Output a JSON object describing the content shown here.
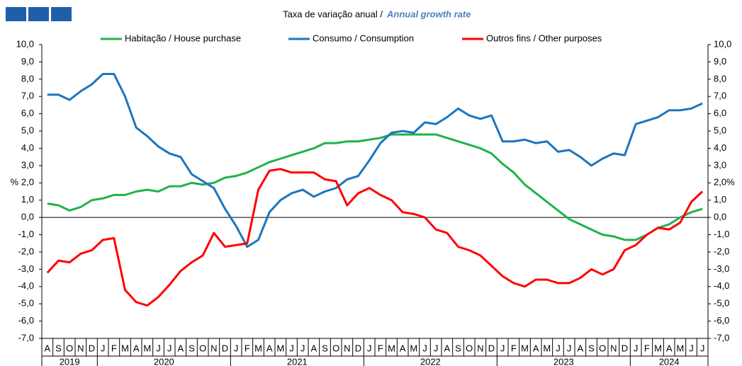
{
  "chart_data": {
    "type": "line",
    "title": "Taxa de variação anual /",
    "title_en": "Annual growth rate",
    "y_label": "%",
    "categories": [
      "A",
      "S",
      "O",
      "N",
      "D",
      "J",
      "F",
      "M",
      "A",
      "M",
      "J",
      "J",
      "A",
      "S",
      "O",
      "N",
      "D",
      "J",
      "F",
      "M",
      "A",
      "M",
      "J",
      "J",
      "A",
      "S",
      "O",
      "N",
      "D",
      "J",
      "F",
      "M",
      "A",
      "M",
      "J",
      "J",
      "A",
      "S",
      "O",
      "N",
      "D",
      "J",
      "F",
      "M",
      "A",
      "M",
      "J",
      "J",
      "A",
      "S",
      "O",
      "N",
      "D",
      "J",
      "F",
      "M",
      "A",
      "M",
      "J",
      "J"
    ],
    "years": [
      "2019",
      "2020",
      "2021",
      "2022",
      "2023",
      "2024"
    ],
    "series": [
      {
        "name": "Habitação / House purchase",
        "color": "#1fb34a",
        "values": [
          0.8,
          0.7,
          0.4,
          0.6,
          1.0,
          1.1,
          1.3,
          1.3,
          1.5,
          1.6,
          1.5,
          1.8,
          1.8,
          2.0,
          1.9,
          2.0,
          2.3,
          2.4,
          2.6,
          2.9,
          3.2,
          3.4,
          3.6,
          3.8,
          4.0,
          4.3,
          4.3,
          4.4,
          4.4,
          4.5,
          4.6,
          4.8,
          4.8,
          4.8,
          4.8,
          4.8,
          4.6,
          4.4,
          4.2,
          4.0,
          3.7,
          3.1,
          2.6,
          1.9,
          1.4,
          0.9,
          0.4,
          -0.1,
          -0.4,
          -0.7,
          -1.0,
          -1.1,
          -1.3,
          -1.3,
          -1.0,
          -0.6,
          -0.4,
          0.0,
          0.3,
          0.5
        ]
      },
      {
        "name": "Consumo / Consumption",
        "color": "#1b75bf",
        "values": [
          7.1,
          7.1,
          6.8,
          7.3,
          7.7,
          8.3,
          8.3,
          7.0,
          5.2,
          4.7,
          4.1,
          3.7,
          3.5,
          2.5,
          2.1,
          1.7,
          0.5,
          -0.5,
          -1.7,
          -1.3,
          0.3,
          1.0,
          1.4,
          1.6,
          1.2,
          1.5,
          1.7,
          2.2,
          2.4,
          3.3,
          4.3,
          4.9,
          5.0,
          4.9,
          5.5,
          5.4,
          5.8,
          6.3,
          5.9,
          5.7,
          5.9,
          4.4,
          4.4,
          4.5,
          4.3,
          4.4,
          3.8,
          3.9,
          3.5,
          3.0,
          3.4,
          3.7,
          3.6,
          5.4,
          5.6,
          5.8,
          6.2,
          6.2,
          6.3,
          6.6
        ]
      },
      {
        "name": "Outros fins / Other purposes",
        "color": "#ff0000",
        "values": [
          -3.2,
          -2.5,
          -2.6,
          -2.1,
          -1.9,
          -1.3,
          -1.2,
          -4.2,
          -4.9,
          -5.1,
          -4.6,
          -3.9,
          -3.1,
          -2.6,
          -2.2,
          -0.9,
          -1.7,
          -1.6,
          -1.5,
          1.6,
          2.7,
          2.8,
          2.6,
          2.6,
          2.6,
          2.2,
          2.1,
          0.7,
          1.4,
          1.7,
          1.3,
          1.0,
          0.3,
          0.2,
          0.0,
          -0.7,
          -0.9,
          -1.7,
          -1.9,
          -2.2,
          -2.8,
          -3.4,
          -3.8,
          -4.0,
          -3.6,
          -3.6,
          -3.8,
          -3.8,
          -3.5,
          -3.0,
          -3.3,
          -3.0,
          -1.9,
          -1.6,
          -1.0,
          -0.6,
          -0.7,
          -0.3,
          0.9,
          1.5
        ]
      }
    ],
    "ylim": [
      -7,
      10
    ],
    "yticks": [
      {
        "value": 10,
        "label": "10,0"
      },
      {
        "value": 9,
        "label": "9,0"
      },
      {
        "value": 8,
        "label": "8,0"
      },
      {
        "value": 7,
        "label": "7,0"
      },
      {
        "value": 6,
        "label": "6,0"
      },
      {
        "value": 5,
        "label": "5,0"
      },
      {
        "value": 4,
        "label": "4,0"
      },
      {
        "value": 3,
        "label": "3,0"
      },
      {
        "value": 2,
        "label": "2,0"
      },
      {
        "value": 1,
        "label": "1,0"
      },
      {
        "value": 0,
        "label": "0,0"
      },
      {
        "value": -1,
        "label": "-1,0"
      },
      {
        "value": -2,
        "label": "-2,0"
      },
      {
        "value": -3,
        "label": "-3,0"
      },
      {
        "value": -4,
        "label": "-4,0"
      },
      {
        "value": -5,
        "label": "-5,0"
      },
      {
        "value": -6,
        "label": "-6,0"
      },
      {
        "value": -7,
        "label": "-7,0"
      }
    ],
    "y2lim": [
      -7,
      10
    ],
    "y2ticks": [
      {
        "value": 10,
        "label": "10,0"
      },
      {
        "value": 9,
        "label": "9,0"
      },
      {
        "value": 8,
        "label": "8,0"
      },
      {
        "value": 7,
        "label": "7,0"
      },
      {
        "value": 6,
        "label": "6,0"
      },
      {
        "value": 5,
        "label": "5,0"
      },
      {
        "value": 4,
        "label": "4,0"
      },
      {
        "value": 3,
        "label": "3,0"
      },
      {
        "value": 2,
        "label": "2,0%"
      },
      {
        "value": 1,
        "label": "1,0"
      },
      {
        "value": 0,
        "label": "0,0"
      },
      {
        "value": -1,
        "label": "-1,0"
      },
      {
        "value": -2,
        "label": "-2,0"
      },
      {
        "value": -3,
        "label": "-3,0"
      },
      {
        "value": -4,
        "label": "-4,0"
      },
      {
        "value": -5,
        "label": "-5,0"
      },
      {
        "value": -6,
        "label": "-6,0"
      },
      {
        "value": -7,
        "label": "-7,0"
      }
    ],
    "grid": false,
    "legend": "top"
  }
}
